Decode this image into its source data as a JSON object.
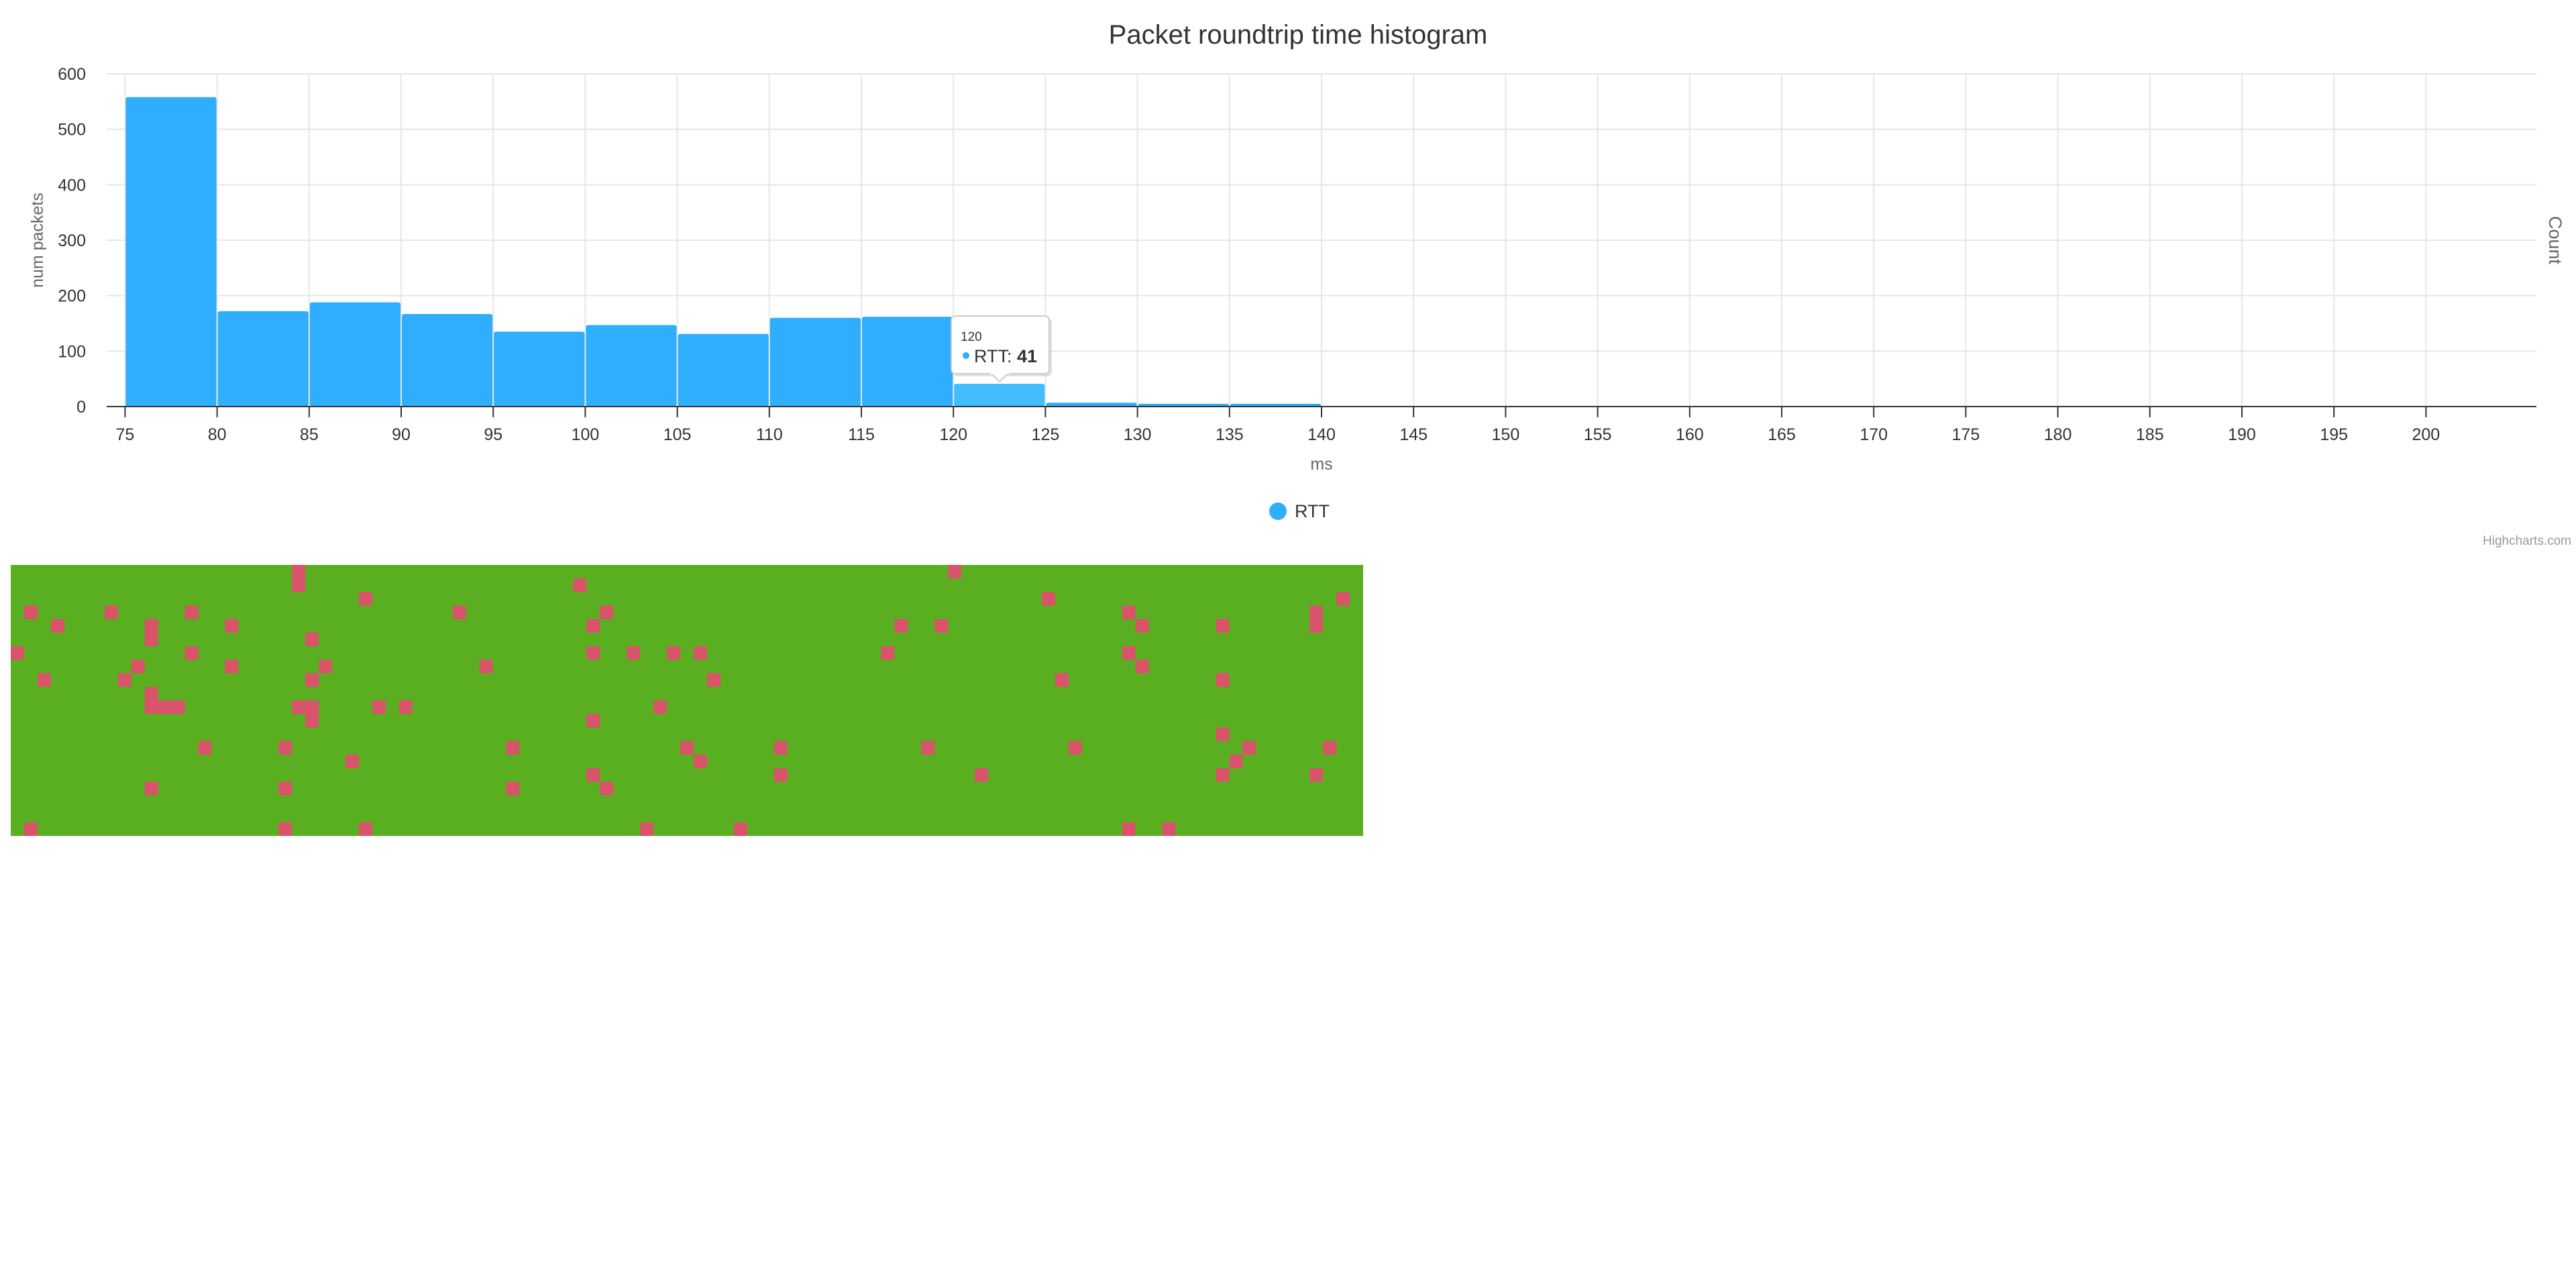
{
  "chart_data": {
    "type": "bar",
    "title": "Packet roundtrip time histogram",
    "xlabel": "ms",
    "ylabel": "num packets",
    "ylabel_right": "Count",
    "bin_width": 5,
    "xlim": [
      74,
      206
    ],
    "ylim": [
      0,
      600
    ],
    "x_ticks": [
      75,
      80,
      85,
      90,
      95,
      100,
      105,
      110,
      115,
      120,
      125,
      130,
      135,
      140,
      145,
      150,
      155,
      160,
      165,
      170,
      175,
      180,
      185,
      190,
      195,
      200
    ],
    "y_ticks": [
      0,
      100,
      200,
      300,
      400,
      500,
      600
    ],
    "grid": true,
    "legend_position": "bottom-center",
    "series": [
      {
        "name": "RTT",
        "color": "#2eaefc",
        "hover_color": "#41bdfd",
        "x": [
          75,
          80,
          85,
          90,
          95,
          100,
          105,
          110,
          115,
          120,
          125,
          130,
          135
        ],
        "values": [
          558,
          172,
          188,
          167,
          135,
          147,
          131,
          160,
          162,
          41,
          7,
          5,
          5
        ]
      }
    ],
    "tooltip": {
      "header": "120",
      "series_name": "RTT",
      "separator": ": ",
      "value": "41",
      "bin_index": 9
    },
    "credits": "Highcharts.com"
  },
  "packet_grid": {
    "columns": 101,
    "rows": 20,
    "ok_color": "#5aaf21",
    "lost_color": "#d9536a",
    "lost_cells": [
      [
        21,
        0
      ],
      [
        21,
        1
      ],
      [
        26,
        2
      ],
      [
        77,
        2
      ],
      [
        1,
        3
      ],
      [
        7,
        3
      ],
      [
        13,
        3
      ],
      [
        33,
        3
      ],
      [
        44,
        3
      ],
      [
        83,
        3
      ],
      [
        97,
        3
      ],
      [
        3,
        4
      ],
      [
        10,
        4
      ],
      [
        16,
        4
      ],
      [
        43,
        4
      ],
      [
        69,
        4
      ],
      [
        84,
        4
      ],
      [
        90,
        4
      ],
      [
        97,
        4
      ],
      [
        10,
        5
      ],
      [
        22,
        5
      ],
      [
        0,
        6
      ],
      [
        13,
        6
      ],
      [
        43,
        6
      ],
      [
        46,
        6
      ],
      [
        49,
        6
      ],
      [
        51,
        6
      ],
      [
        65,
        6
      ],
      [
        83,
        6
      ],
      [
        9,
        7
      ],
      [
        16,
        7
      ],
      [
        23,
        7
      ],
      [
        35,
        7
      ],
      [
        84,
        7
      ],
      [
        2,
        8
      ],
      [
        8,
        8
      ],
      [
        22,
        8
      ],
      [
        52,
        8
      ],
      [
        78,
        8
      ],
      [
        90,
        8
      ],
      [
        10,
        9
      ],
      [
        10,
        10
      ],
      [
        11,
        10
      ],
      [
        12,
        10
      ],
      [
        21,
        10
      ],
      [
        22,
        10
      ],
      [
        27,
        10
      ],
      [
        29,
        10
      ],
      [
        48,
        10
      ],
      [
        22,
        11
      ],
      [
        43,
        11
      ],
      [
        90,
        12
      ],
      [
        14,
        13
      ],
      [
        20,
        13
      ],
      [
        37,
        13
      ],
      [
        50,
        13
      ],
      [
        57,
        13
      ],
      [
        68,
        13
      ],
      [
        79,
        13
      ],
      [
        92,
        13
      ],
      [
        98,
        13
      ],
      [
        25,
        14
      ],
      [
        51,
        14
      ],
      [
        91,
        14
      ],
      [
        43,
        15
      ],
      [
        57,
        15
      ],
      [
        72,
        15
      ],
      [
        90,
        15
      ],
      [
        97,
        15
      ],
      [
        10,
        16
      ],
      [
        37,
        16
      ],
      [
        44,
        16
      ],
      [
        1,
        19
      ],
      [
        20,
        19
      ],
      [
        26,
        19
      ],
      [
        47,
        19
      ],
      [
        54,
        19
      ],
      [
        83,
        19
      ],
      [
        86,
        19
      ],
      [
        70,
        0
      ],
      [
        42,
        1
      ],
      [
        99,
        2
      ],
      [
        66,
        4
      ],
      [
        20,
        16
      ]
    ]
  }
}
